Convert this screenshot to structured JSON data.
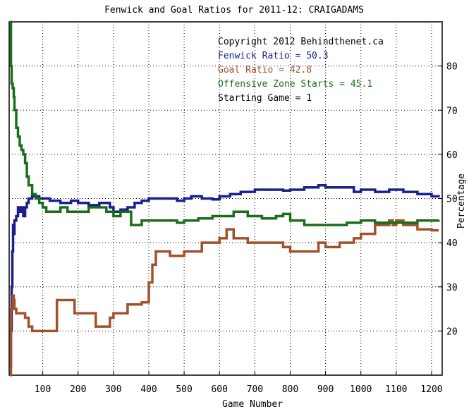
{
  "chart_data": {
    "type": "line",
    "title": "Fenwick and Goal Ratios for 2011-12: CRAIGADAMS",
    "xlabel": "Game Number",
    "ylabel": "Percentage",
    "xlim": [
      5,
      1230
    ],
    "ylim": [
      10,
      90
    ],
    "x_ticks": [
      100,
      200,
      300,
      400,
      500,
      600,
      700,
      800,
      900,
      1000,
      1100,
      1200
    ],
    "y_ticks": [
      20,
      30,
      40,
      50,
      60,
      70,
      80
    ],
    "grid": true,
    "legend_placement": "top-right",
    "annotations": [
      {
        "text": "Copyright 2012 Behindthenet.ca",
        "color": "#000000"
      },
      {
        "text": "Fenwick Ratio = 50.3",
        "color": "#1a1f8c"
      },
      {
        "text": "Goal Ratio = 42.8",
        "color": "#a0522d"
      },
      {
        "text": "Offensive Zone Starts = 45.1",
        "color": "#1a6e1a"
      },
      {
        "text": "Starting Game = 1",
        "color": "#000000"
      }
    ],
    "series": [
      {
        "name": "Fenwick Ratio",
        "color": "#1a1f8c",
        "x": [
          8,
          10,
          12,
          14,
          16,
          18,
          20,
          25,
          30,
          35,
          40,
          45,
          50,
          55,
          60,
          70,
          80,
          90,
          100,
          120,
          150,
          180,
          200,
          230,
          260,
          290,
          300,
          320,
          340,
          360,
          380,
          400,
          420,
          450,
          480,
          500,
          520,
          550,
          580,
          600,
          630,
          660,
          700,
          740,
          780,
          800,
          840,
          880,
          900,
          940,
          980,
          1000,
          1040,
          1080,
          1120,
          1160,
          1200,
          1220
        ],
        "y": [
          12,
          20,
          30,
          38,
          44,
          42,
          45,
          46,
          48,
          47,
          48,
          46,
          48,
          49,
          50,
          50.5,
          50.5,
          50,
          50,
          49.5,
          49,
          49.5,
          49,
          48.5,
          49,
          48,
          47,
          47.5,
          48,
          49,
          49.5,
          50,
          50,
          50,
          49.5,
          50,
          50.5,
          50,
          49.8,
          50.5,
          51,
          51.5,
          52,
          52,
          51.8,
          52,
          52.5,
          53,
          52.5,
          52.5,
          51.5,
          52,
          51.5,
          52,
          51.5,
          51,
          50.5,
          50.3
        ]
      },
      {
        "name": "Goal Ratio",
        "color": "#a0522d",
        "x": [
          8,
          10,
          15,
          18,
          20,
          25,
          30,
          40,
          50,
          60,
          70,
          80,
          90,
          100,
          140,
          160,
          180,
          190,
          200,
          250,
          260,
          280,
          290,
          300,
          320,
          340,
          360,
          380,
          400,
          410,
          420,
          440,
          460,
          500,
          550,
          580,
          600,
          610,
          620,
          640,
          680,
          720,
          760,
          780,
          800,
          820,
          840,
          880,
          900,
          940,
          960,
          980,
          1000,
          1040,
          1080,
          1090,
          1100,
          1120,
          1140,
          1160,
          1180,
          1200,
          1220
        ],
        "y": [
          10,
          25,
          28,
          27,
          25,
          24,
          24,
          24,
          23,
          21,
          20,
          20,
          20,
          20,
          27,
          27,
          27,
          24,
          24,
          21,
          21,
          21,
          23,
          24,
          24,
          26,
          26,
          26.5,
          31,
          35,
          38,
          38,
          37,
          38,
          40,
          40,
          41,
          41,
          43,
          41,
          40,
          40,
          40,
          39,
          38,
          38,
          38,
          40,
          39,
          40,
          40,
          41,
          42,
          44,
          45,
          44,
          45,
          44,
          44,
          43,
          43,
          42.8,
          42.8
        ]
      },
      {
        "name": "Offensive Zone Starts",
        "color": "#1a6e1a",
        "x": [
          8,
          10,
          12,
          15,
          18,
          20,
          25,
          30,
          35,
          40,
          45,
          50,
          55,
          60,
          70,
          80,
          90,
          100,
          110,
          120,
          130,
          150,
          170,
          200,
          230,
          260,
          280,
          300,
          320,
          350,
          380,
          400,
          420,
          450,
          480,
          500,
          540,
          580,
          600,
          640,
          680,
          720,
          760,
          780,
          800,
          840,
          880,
          920,
          960,
          1000,
          1040,
          1080,
          1120,
          1160,
          1200,
          1220
        ],
        "y": [
          90,
          80,
          76,
          75,
          73,
          70,
          66,
          64,
          62,
          61,
          60,
          58,
          55,
          53,
          51,
          50,
          49,
          48,
          47,
          47,
          47,
          48,
          47,
          47,
          48,
          48,
          47,
          46,
          47,
          44,
          45,
          45,
          45,
          45,
          44.5,
          45,
          45.5,
          46,
          46,
          47,
          46,
          45.5,
          46,
          46.5,
          45,
          44,
          44,
          44,
          44.5,
          45,
          44.5,
          44.5,
          44.5,
          45,
          45,
          45.1
        ]
      }
    ]
  }
}
